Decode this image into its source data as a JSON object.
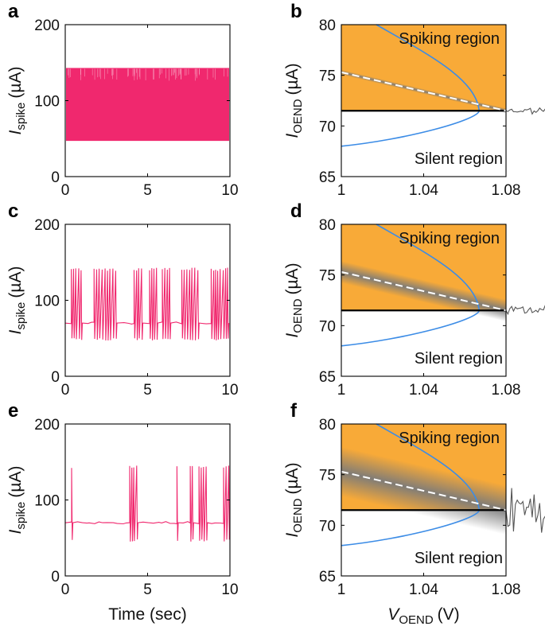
{
  "figure": {
    "panel_letters": [
      "a",
      "b",
      "c",
      "d",
      "e",
      "f"
    ],
    "colors": {
      "spike_trace": "#F0286E",
      "spiking_region": "#F8AA38",
      "bifurcation_curve": "#3C8CE6",
      "threshold_line": "#000000",
      "dashed_line": "#FFFFFF",
      "noise_trace": "#555555",
      "band": "#7A7A7A"
    }
  },
  "chart_data": [
    {
      "panel": "a",
      "type": "line",
      "title": "",
      "xlabel": "",
      "ylabel_main": "I",
      "ylabel_sub": "spike",
      "ylabel_unit": "(µA)",
      "xlim": [
        0,
        10
      ],
      "ylim": [
        0,
        200
      ],
      "xticks": [
        "0",
        "5",
        "10"
      ],
      "yticks": [
        "0",
        "100",
        "200"
      ],
      "series": [
        {
          "name": "spike trace",
          "spike_high": 143,
          "spike_low": 47,
          "rest_level": 70,
          "spike_density": "continuous"
        }
      ]
    },
    {
      "panel": "b",
      "type": "line",
      "xlabel": "",
      "ylabel_main": "I",
      "ylabel_sub": "OEND",
      "ylabel_unit": "(µA)",
      "xlim": [
        1.0,
        1.08
      ],
      "ylim": [
        65,
        80
      ],
      "xticks": [
        "1",
        "1.04",
        "1.08"
      ],
      "yticks": [
        "65",
        "70",
        "75",
        "80"
      ],
      "threshold": 71.5,
      "region_labels": {
        "top": "Spiking region",
        "bottom": "Silent region"
      },
      "bifurcation_curve": {
        "tip_x": 1.067,
        "tip_y": 71.5,
        "upper_start": [
          1.017,
          80
        ],
        "lower_start": [
          1.0,
          68.0
        ]
      },
      "dashed_line": {
        "x": [
          1.0,
          1.08
        ],
        "y": [
          75.3,
          71.5
        ]
      },
      "band_spread": 0.2,
      "noise_trace": {
        "x_start": 1.08,
        "x_end": 1.1,
        "center": 71.5,
        "amplitude": 0.2
      }
    },
    {
      "panel": "c",
      "type": "line",
      "xlabel": "",
      "ylabel_main": "I",
      "ylabel_sub": "spike",
      "ylabel_unit": "(µA)",
      "xlim": [
        0,
        10
      ],
      "ylim": [
        0,
        200
      ],
      "xticks": [
        "0",
        "5",
        "10"
      ],
      "yticks": [
        "0",
        "100",
        "200"
      ],
      "series": [
        {
          "name": "spike trace",
          "spike_high": 143,
          "spike_low": 47,
          "rest_level": 70,
          "spike_density": "medium"
        }
      ]
    },
    {
      "panel": "d",
      "type": "line",
      "xlabel": "",
      "ylabel_main": "I",
      "ylabel_sub": "OEND",
      "ylabel_unit": "(µA)",
      "xlim": [
        1.0,
        1.08
      ],
      "ylim": [
        65,
        80
      ],
      "xticks": [
        "1",
        "1.04",
        "1.08"
      ],
      "yticks": [
        "65",
        "70",
        "75",
        "80"
      ],
      "threshold": 71.5,
      "region_labels": {
        "top": "Spiking region",
        "bottom": "Silent region"
      },
      "bifurcation_curve": {
        "tip_x": 1.067,
        "tip_y": 71.5,
        "upper_start": [
          1.017,
          80
        ],
        "lower_start": [
          1.0,
          68.0
        ]
      },
      "dashed_line": {
        "x": [
          1.0,
          1.08
        ],
        "y": [
          75.3,
          71.5
        ]
      },
      "band_spread": 0.9,
      "noise_trace": {
        "x_start": 1.08,
        "x_end": 1.1,
        "center": 71.5,
        "amplitude": 0.3
      }
    },
    {
      "panel": "e",
      "type": "line",
      "xlabel": "Time (sec)",
      "ylabel_main": "I",
      "ylabel_sub": "spike",
      "ylabel_unit": "(µA)",
      "xlim": [
        0,
        10
      ],
      "ylim": [
        0,
        200
      ],
      "xticks": [
        "0",
        "5",
        "10"
      ],
      "yticks": [
        "0",
        "100",
        "200"
      ],
      "series": [
        {
          "name": "spike trace",
          "spike_high": 146,
          "spike_low": 45,
          "rest_level": 70,
          "spike_density": "sparse"
        }
      ]
    },
    {
      "panel": "f",
      "type": "line",
      "xlabel_main": "V",
      "xlabel_sub": "OEND",
      "xlabel_unit": "(V)",
      "ylabel_main": "I",
      "ylabel_sub": "OEND",
      "ylabel_unit": "(µA)",
      "xlim": [
        1.0,
        1.08
      ],
      "ylim": [
        65,
        80
      ],
      "xticks": [
        "1",
        "1.04",
        "1.08"
      ],
      "yticks": [
        "65",
        "70",
        "75",
        "80"
      ],
      "threshold": 71.5,
      "region_labels": {
        "top": "Spiking region",
        "bottom": "Silent region"
      },
      "bifurcation_curve": {
        "tip_x": 1.067,
        "tip_y": 71.5,
        "upper_start": [
          1.017,
          80
        ],
        "lower_start": [
          1.0,
          68.0
        ]
      },
      "dashed_line": {
        "x": [
          1.0,
          1.08
        ],
        "y": [
          75.3,
          71.5
        ]
      },
      "band_spread": 2.0,
      "noise_trace": {
        "x_start": 1.08,
        "x_end": 1.1,
        "center": 71.5,
        "amplitude": 1.2
      }
    }
  ]
}
